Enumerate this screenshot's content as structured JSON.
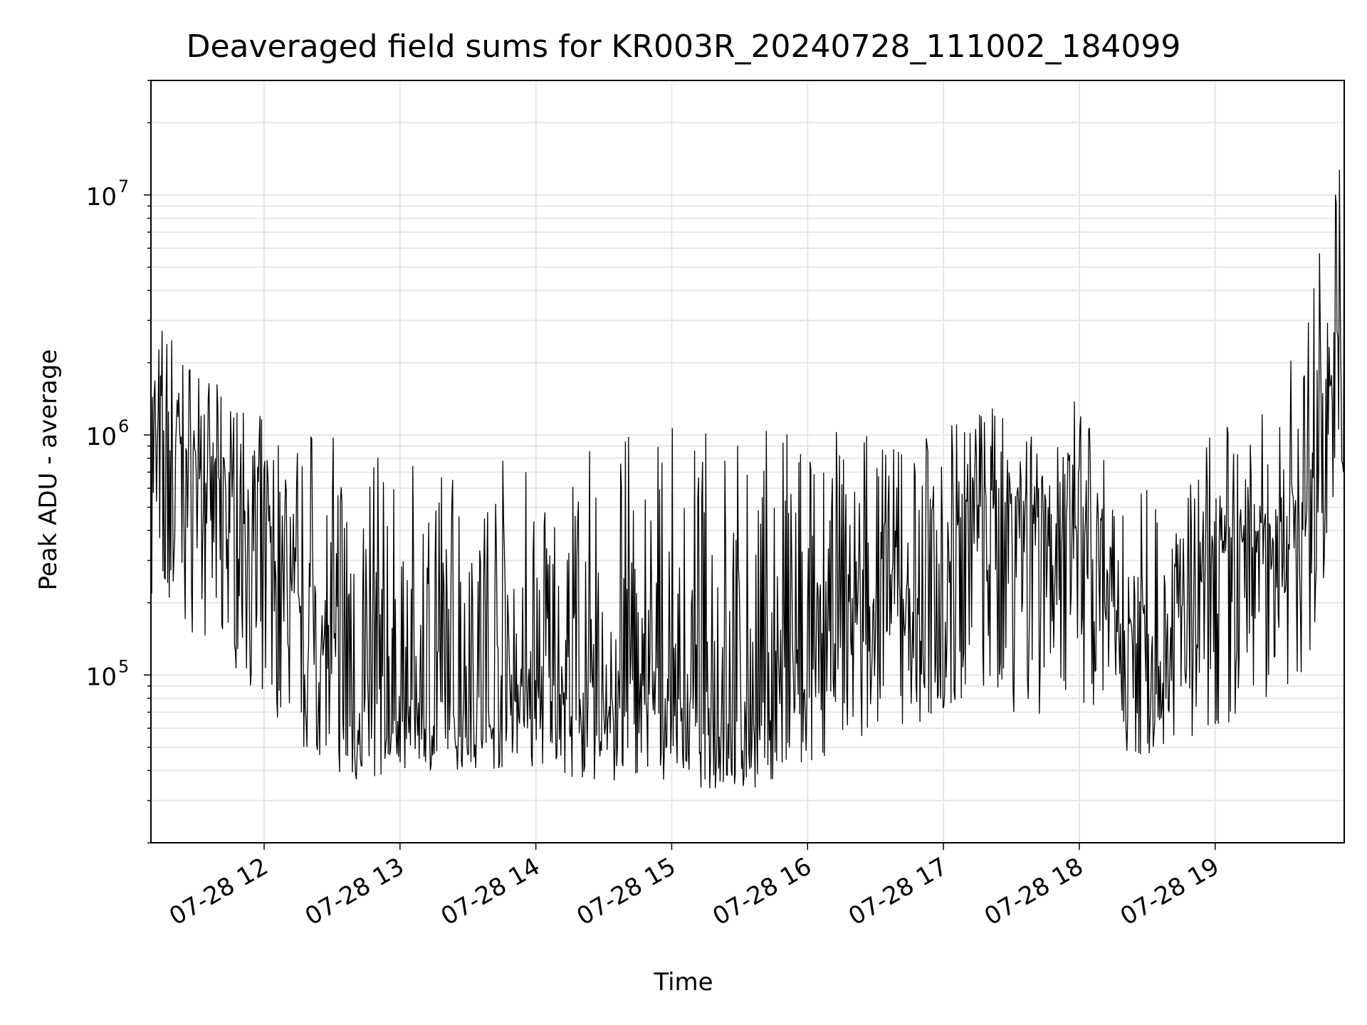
{
  "chart_data": {
    "type": "line",
    "title": "Deaveraged field sums for KR003R_20240728_111002_184099",
    "xlabel": "Time",
    "ylabel": "Peak ADU - average",
    "yscale": "log",
    "ylim": [
      20000,
      30000000
    ],
    "xlim": [
      "07-28 11:10",
      "07-28 19:57"
    ],
    "grid": true,
    "x_ticks": [
      "07-28 12",
      "07-28 13",
      "07-28 14",
      "07-28 15",
      "07-28 16",
      "07-28 17",
      "07-28 18",
      "07-28 19"
    ],
    "y_ticks": [
      {
        "base": "10",
        "exp": "5",
        "value": 100000
      },
      {
        "base": "10",
        "exp": "6",
        "value": 1000000
      },
      {
        "base": "10",
        "exp": "7",
        "value": 10000000
      }
    ],
    "series": [
      {
        "color": "#000000",
        "envelope": {
          "time": [
            "07-28 11:10",
            "07-28 11:30",
            "07-28 11:50",
            "07-28 12:15",
            "07-28 12:40",
            "07-28 13:00",
            "07-28 13:30",
            "07-28 14:00",
            "07-28 14:30",
            "07-28 15:00",
            "07-28 15:30",
            "07-28 16:00",
            "07-28 16:30",
            "07-28 16:50",
            "07-28 17:10",
            "07-28 17:30",
            "07-28 18:00",
            "07-28 18:20",
            "07-28 18:40",
            "07-28 19:00",
            "07-28 19:20",
            "07-28 19:40",
            "07-28 19:57"
          ],
          "typical": [
            900000,
            800000,
            500000,
            200000,
            80000,
            70000,
            85000,
            90000,
            80000,
            80000,
            70000,
            100000,
            300000,
            200000,
            500000,
            500000,
            400000,
            150000,
            150000,
            300000,
            400000,
            500000,
            3000000
          ],
          "low": [
            150000,
            150000,
            100000,
            50000,
            35000,
            40000,
            40000,
            40000,
            35000,
            35000,
            32000,
            40000,
            60000,
            60000,
            70000,
            70000,
            60000,
            40000,
            50000,
            60000,
            70000,
            100000,
            700000
          ],
          "high": [
            4000000,
            2000000,
            1300000,
            1100000,
            1100000,
            700000,
            1000000,
            800000,
            1000000,
            1100000,
            1100000,
            1100000,
            1100000,
            1000000,
            1300000,
            1400000,
            1400000,
            700000,
            600000,
            1100000,
            1200000,
            3000000,
            22000000
          ]
        }
      }
    ]
  }
}
